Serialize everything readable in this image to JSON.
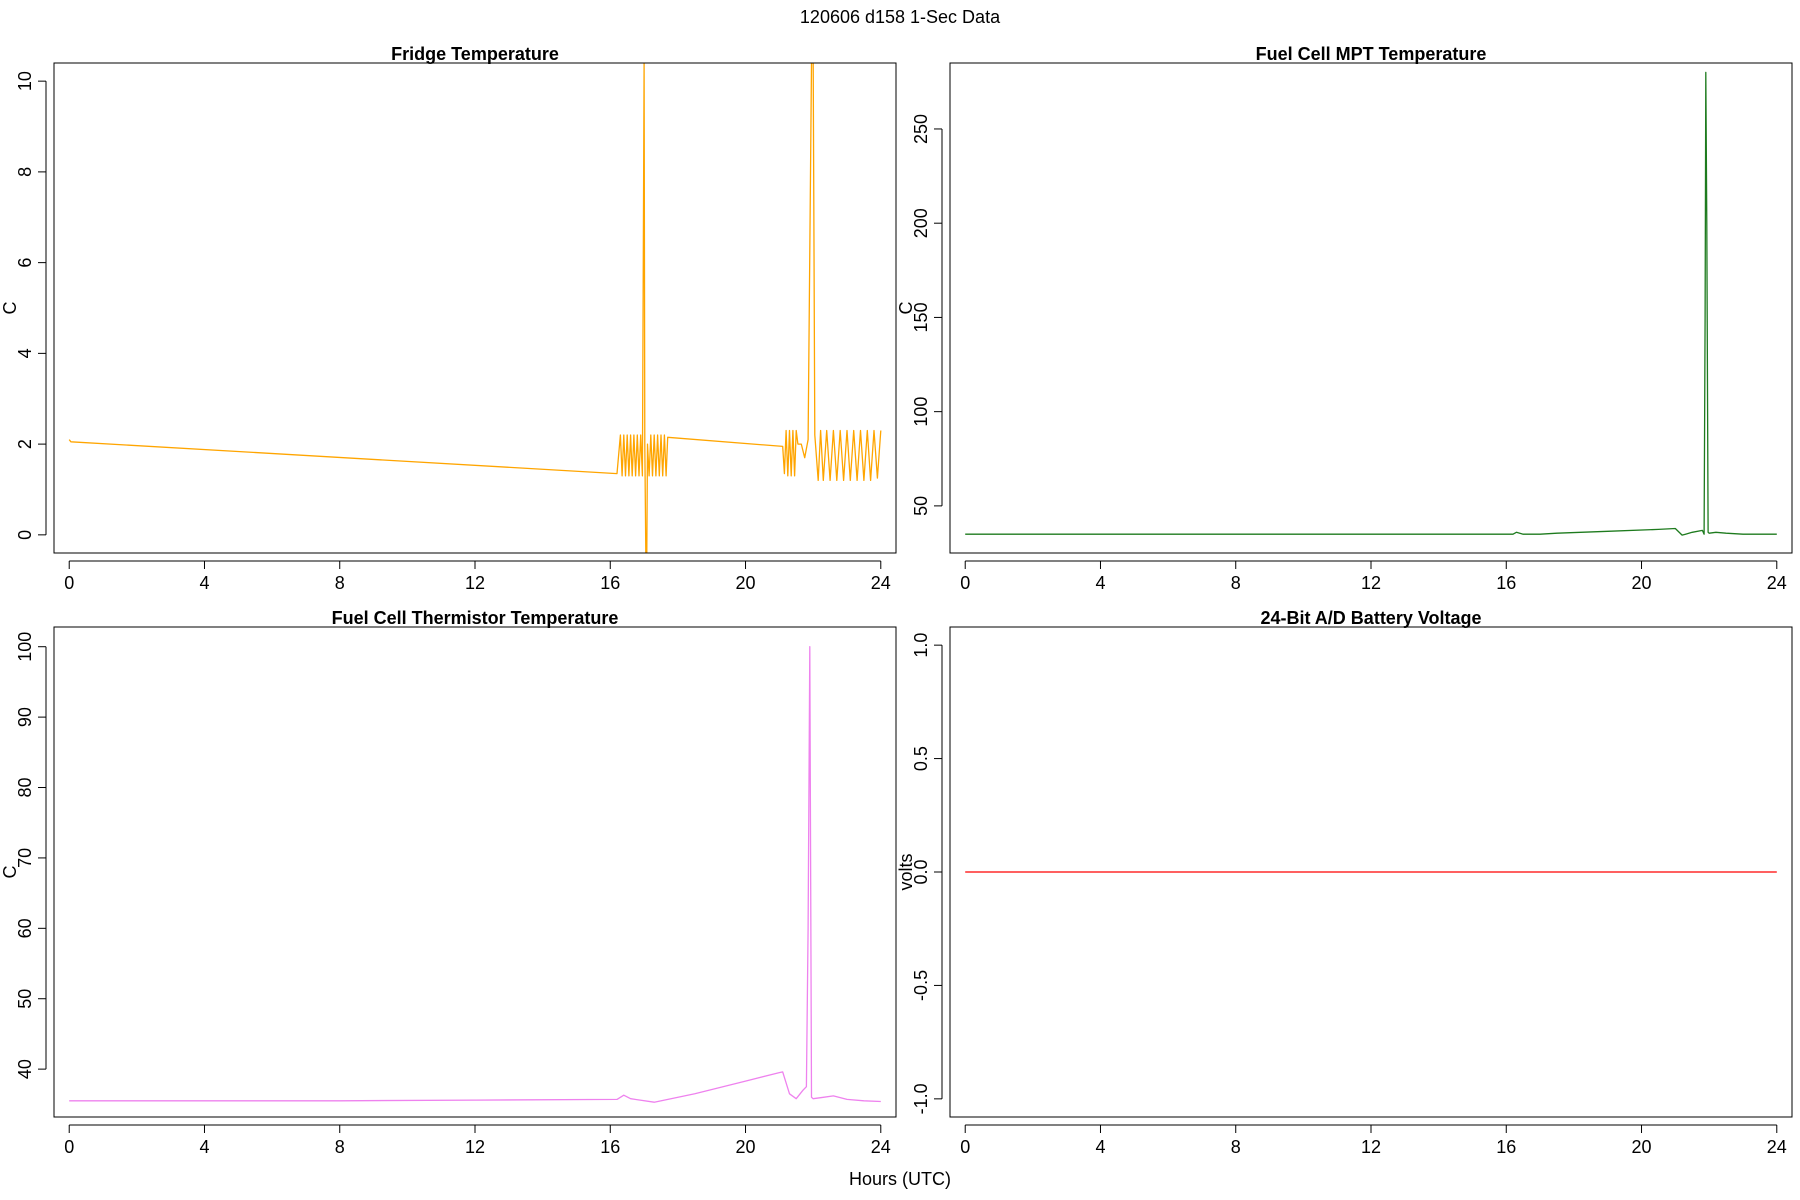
{
  "page": {
    "title": "120606   d158   1-Sec Data",
    "xlabel": "Hours (UTC)"
  },
  "chart_data": [
    {
      "type": "line",
      "title": "Fridge Temperature",
      "xlabel": "Hours (UTC)",
      "ylabel": "C",
      "xlim": [
        -0.45,
        24.45
      ],
      "ylim": [
        -0.4,
        10.4
      ],
      "xticks": [
        0,
        4,
        8,
        12,
        16,
        20,
        24
      ],
      "yticks": [
        0,
        2,
        4,
        6,
        8,
        10
      ],
      "color": "#FFA500",
      "series": [
        {
          "name": "Fridge Temperature",
          "x": [
            0,
            0.05,
            16.2,
            16.3,
            16.35,
            16.4,
            16.45,
            16.5,
            16.55,
            16.6,
            16.65,
            16.7,
            16.75,
            16.8,
            16.85,
            16.9,
            16.95,
            17.0,
            17.02,
            17.05,
            17.08,
            17.1,
            17.15,
            17.2,
            17.25,
            17.3,
            17.35,
            17.4,
            17.45,
            17.5,
            17.55,
            17.6,
            17.65,
            17.7,
            21.1,
            21.15,
            21.2,
            21.25,
            21.3,
            21.35,
            21.4,
            21.45,
            21.5,
            21.55,
            21.65,
            21.75,
            21.85,
            21.95,
            22.0,
            22.05,
            22.15,
            22.22,
            22.3,
            22.4,
            22.5,
            22.6,
            22.7,
            22.8,
            22.9,
            23.0,
            23.1,
            23.2,
            23.3,
            23.4,
            23.5,
            23.6,
            23.7,
            23.8,
            23.9,
            24.0
          ],
          "y": [
            2.1,
            2.05,
            1.35,
            2.2,
            1.3,
            2.2,
            1.3,
            2.2,
            1.3,
            2.2,
            1.3,
            2.2,
            1.3,
            2.2,
            1.3,
            2.2,
            1.3,
            10.4,
            2.0,
            -0.4,
            -0.4,
            2.0,
            1.3,
            2.2,
            1.3,
            2.2,
            1.3,
            2.2,
            1.3,
            2.2,
            1.3,
            2.2,
            1.3,
            2.15,
            1.95,
            1.35,
            2.3,
            1.3,
            2.3,
            1.3,
            2.3,
            1.3,
            2.3,
            2.0,
            2.0,
            1.7,
            2.1,
            10.4,
            10.4,
            2.2,
            1.2,
            2.3,
            1.2,
            2.3,
            1.2,
            2.3,
            1.2,
            2.3,
            1.2,
            2.3,
            1.2,
            2.3,
            1.2,
            2.3,
            1.2,
            2.3,
            1.2,
            2.3,
            1.25,
            2.3
          ]
        }
      ]
    },
    {
      "type": "line",
      "title": "Fuel Cell MPT Temperature",
      "xlabel": "Hours (UTC)",
      "ylabel": "C",
      "xlim": [
        -0.45,
        24.45
      ],
      "ylim": [
        25,
        285
      ],
      "xticks": [
        0,
        4,
        8,
        12,
        16,
        20,
        24
      ],
      "yticks": [
        50,
        100,
        150,
        200,
        250
      ],
      "color": "#1E7B1E",
      "series": [
        {
          "name": "Fuel Cell MPT Temperature",
          "x": [
            0,
            4,
            8,
            12,
            16.2,
            16.3,
            16.5,
            17.0,
            17.5,
            19.0,
            20.5,
            21.0,
            21.2,
            21.3,
            21.5,
            21.8,
            21.85,
            21.88,
            21.9,
            21.93,
            21.97,
            22.0,
            22.2,
            22.5,
            23.0,
            24.0
          ],
          "y": [
            35,
            35,
            35,
            35,
            35,
            36,
            35,
            35,
            35.5,
            36.5,
            37.5,
            38,
            34.5,
            35,
            36,
            37,
            35,
            150,
            280,
            200,
            36,
            35.5,
            36,
            35.5,
            35,
            35
          ]
        }
      ]
    },
    {
      "type": "line",
      "title": "Fuel Cell Thermistor Temperature",
      "xlabel": "Hours (UTC)",
      "ylabel": "C",
      "xlim": [
        -0.45,
        24.45
      ],
      "ylim": [
        33.2,
        102.8
      ],
      "xticks": [
        0,
        4,
        8,
        12,
        16,
        20,
        24
      ],
      "yticks": [
        40,
        50,
        60,
        70,
        80,
        90,
        100
      ],
      "color": "#EE82EE",
      "series": [
        {
          "name": "Fuel Cell Thermistor Temperature",
          "x": [
            0,
            4,
            8,
            12,
            16.2,
            16.4,
            16.6,
            17.3,
            18.5,
            20.0,
            21.0,
            21.1,
            21.3,
            21.5,
            21.7,
            21.8,
            21.85,
            21.9,
            21.95,
            22.0,
            22.3,
            22.6,
            23.0,
            23.5,
            24.0
          ],
          "y": [
            35.5,
            35.5,
            35.5,
            35.6,
            35.7,
            36.3,
            35.8,
            35.3,
            36.5,
            38.3,
            39.5,
            39.6,
            36.5,
            35.8,
            37.0,
            37.5,
            60,
            100,
            36,
            35.8,
            36.0,
            36.2,
            35.7,
            35.5,
            35.4
          ]
        }
      ]
    },
    {
      "type": "line",
      "title": "24-Bit A/D Battery Voltage",
      "xlabel": "Hours (UTC)",
      "ylabel": "volts",
      "xlim": [
        -0.45,
        24.45
      ],
      "ylim": [
        -1.08,
        1.08
      ],
      "xticks": [
        0,
        4,
        8,
        12,
        16,
        20,
        24
      ],
      "yticks": [
        -1.0,
        -0.5,
        0.0,
        0.5,
        1.0
      ],
      "ytick_labels": [
        "-1.0",
        "-0.5",
        "0.0",
        "0.5",
        "1.0"
      ],
      "color": "#FF0000",
      "series": [
        {
          "name": "24-Bit A/D Battery Voltage",
          "x": [
            0,
            24
          ],
          "y": [
            0,
            0
          ]
        }
      ]
    }
  ]
}
